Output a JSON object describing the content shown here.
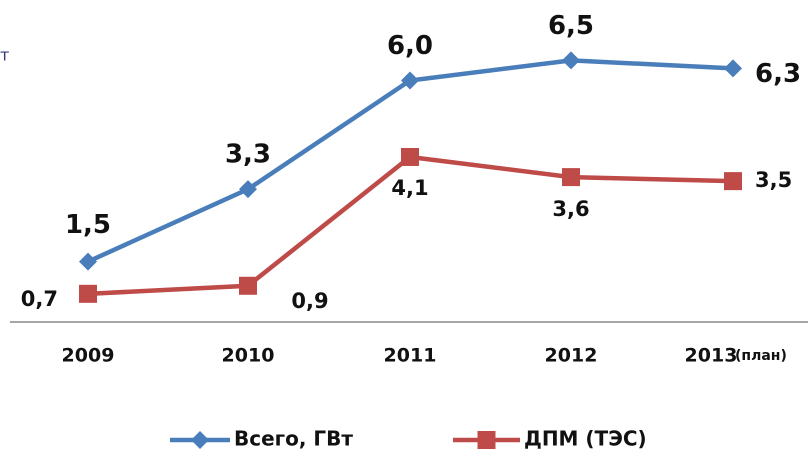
{
  "chart_data": {
    "type": "line",
    "title": "т",
    "categories": [
      "2009",
      "2010",
      "2011",
      "2012",
      "2013"
    ],
    "category_note": "(план)",
    "series": [
      {
        "name": "Всего, ГВт",
        "color": "#4a7ebb",
        "marker": "diamond",
        "values": [
          1.5,
          3.3,
          6.0,
          6.5,
          6.3
        ],
        "value_labels": [
          "1,5",
          "3,3",
          "6,0",
          "6,5",
          "6,3"
        ]
      },
      {
        "name": "ДПМ (ТЭС)",
        "color": "#be4b48",
        "marker": "square",
        "values": [
          0.7,
          0.9,
          4.1,
          3.6,
          3.5
        ],
        "value_labels": [
          "0,7",
          "0,9",
          "4,1",
          "3,6",
          "3,5"
        ]
      }
    ],
    "ylim": [
      0,
      8
    ],
    "grid": false,
    "legend": "bottom"
  }
}
